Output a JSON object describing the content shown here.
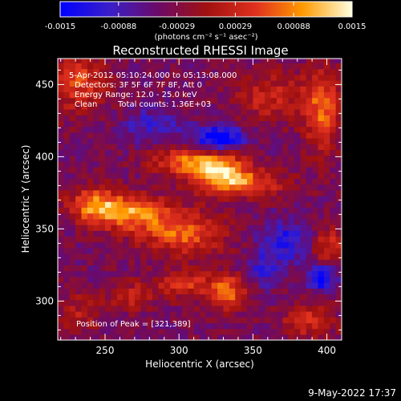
{
  "chart_data": {
    "type": "heatmap",
    "title": "Reconstructed RHESSI Image",
    "xlabel": "Heliocentric X (arcsec)",
    "ylabel": "Heliocentric Y (arcsec)",
    "xlim": [
      218,
      410
    ],
    "ylim": [
      273,
      468
    ],
    "xticks": [
      250,
      300,
      350,
      400
    ],
    "yticks": [
      300,
      350,
      400,
      450
    ],
    "colorbar": {
      "range": [
        -0.0015,
        0.0015
      ],
      "tick_labels": [
        "-0.0015",
        "-0.00088",
        "-0.00029",
        "0.00029",
        "0.00088",
        "0.0015"
      ],
      "unit_label": "(photons cm⁻² s⁻¹ asec⁻²)",
      "colors": [
        "#0000ff",
        "#4b0082",
        "#8b1a1a",
        "#e0301e",
        "#ff8c00",
        "#ffd700",
        "#ffffe0"
      ]
    },
    "info": {
      "time_range": "5-Apr-2012 05:10:24.000 to 05:13:08.000",
      "detectors": "Detectors: 3F 5F 6F 7F 8F, Att 0",
      "energy": "Energy Range: 12.0 - 25.0 keV",
      "clean": "Clean",
      "counts": "Total counts: 1.36E+03",
      "peak": "Position of Peak = [321,389]"
    },
    "sources": [
      {
        "x": 240,
        "y": 365,
        "rx": 14,
        "ry": 10,
        "value": 0.0011
      },
      {
        "x": 265,
        "y": 360,
        "rx": 22,
        "ry": 10,
        "value": 0.0013
      },
      {
        "x": 300,
        "y": 345,
        "rx": 24,
        "ry": 12,
        "value": 0.0011
      },
      {
        "x": 325,
        "y": 389,
        "rx": 16,
        "ry": 12,
        "value": 0.0015
      },
      {
        "x": 300,
        "y": 395,
        "rx": 18,
        "ry": 8,
        "value": 0.001
      },
      {
        "x": 345,
        "y": 380,
        "rx": 22,
        "ry": 8,
        "value": 0.0009
      },
      {
        "x": 230,
        "y": 450,
        "rx": 16,
        "ry": 18,
        "value": 0.0009
      },
      {
        "x": 395,
        "y": 430,
        "rx": 10,
        "ry": 24,
        "value": 0.0011
      },
      {
        "x": 330,
        "y": 305,
        "rx": 12,
        "ry": 10,
        "value": 0.0012
      },
      {
        "x": 300,
        "y": 310,
        "rx": 14,
        "ry": 8,
        "value": 0.0009
      },
      {
        "x": 265,
        "y": 302,
        "rx": 12,
        "ry": 8,
        "value": 0.0007
      },
      {
        "x": 400,
        "y": 335,
        "rx": 10,
        "ry": 12,
        "value": 0.0008
      },
      {
        "x": 385,
        "y": 285,
        "rx": 14,
        "ry": 10,
        "value": 0.0008
      },
      {
        "x": 360,
        "y": 440,
        "rx": 20,
        "ry": 14,
        "value": 0.0007
      },
      {
        "x": 230,
        "y": 290,
        "rx": 14,
        "ry": 12,
        "value": 0.0005
      },
      {
        "x": 325,
        "y": 410,
        "rx": 14,
        "ry": 8,
        "value": -0.0014
      },
      {
        "x": 280,
        "y": 420,
        "rx": 16,
        "ry": 10,
        "value": -0.0006
      },
      {
        "x": 395,
        "y": 315,
        "rx": 8,
        "ry": 8,
        "value": -0.0012
      },
      {
        "x": 370,
        "y": 340,
        "rx": 14,
        "ry": 12,
        "value": -0.0008
      },
      {
        "x": 355,
        "y": 320,
        "rx": 10,
        "ry": 10,
        "value": -0.0006
      }
    ]
  },
  "footer": {
    "timestamp": "9-May-2022 17:37"
  }
}
